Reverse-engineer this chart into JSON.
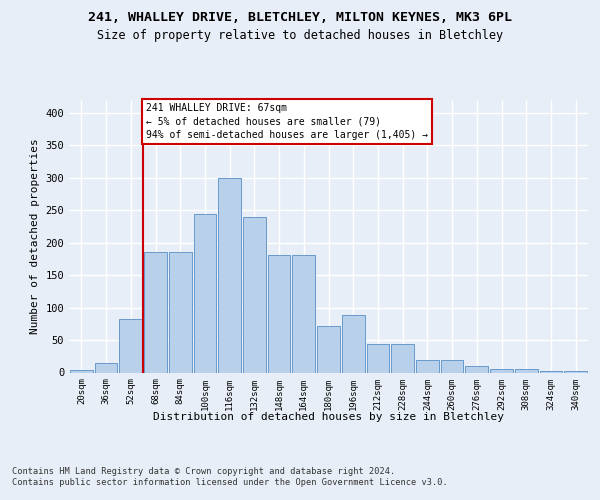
{
  "title1": "241, WHALLEY DRIVE, BLETCHLEY, MILTON KEYNES, MK3 6PL",
  "title2": "Size of property relative to detached houses in Bletchley",
  "xlabel": "Distribution of detached houses by size in Bletchley",
  "ylabel": "Number of detached properties",
  "bin_labels": [
    "20sqm",
    "36sqm",
    "52sqm",
    "68sqm",
    "84sqm",
    "100sqm",
    "116sqm",
    "132sqm",
    "148sqm",
    "164sqm",
    "180sqm",
    "196sqm",
    "212sqm",
    "228sqm",
    "244sqm",
    "260sqm",
    "276sqm",
    "292sqm",
    "308sqm",
    "324sqm",
    "340sqm"
  ],
  "bar_values": [
    4,
    14,
    83,
    186,
    186,
    245,
    300,
    240,
    181,
    181,
    72,
    88,
    44,
    44,
    20,
    20,
    10,
    6,
    5,
    3,
    3
  ],
  "bar_color": "#b8d0ea",
  "bar_edge_color": "#6699cc",
  "vline_bin_index": 2,
  "annotation_line1": "241 WHALLEY DRIVE: 67sqm",
  "annotation_line2": "← 5% of detached houses are smaller (79)",
  "annotation_line3": "94% of semi-detached houses are larger (1,405) →",
  "vline_color": "#cc0000",
  "ylim": [
    0,
    420
  ],
  "yticks": [
    0,
    50,
    100,
    150,
    200,
    250,
    300,
    350,
    400
  ],
  "footer": "Contains HM Land Registry data © Crown copyright and database right 2024.\nContains public sector information licensed under the Open Government Licence v3.0.",
  "bg_color": "#e8eef7",
  "grid_color": "#ffffff"
}
